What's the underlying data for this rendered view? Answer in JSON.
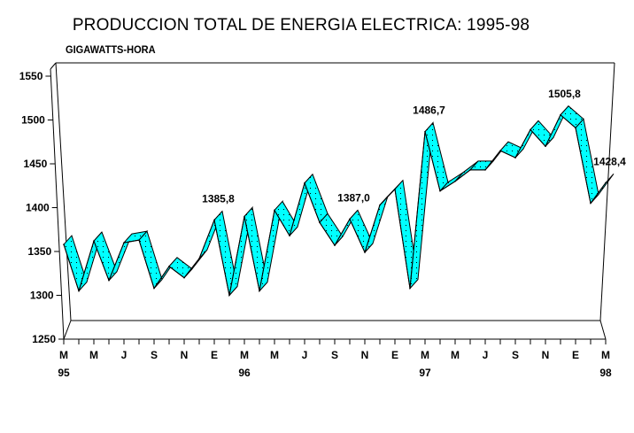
{
  "chart_data": {
    "type": "line",
    "style": "3d-ribbon",
    "title": "PRODUCCION TOTAL DE ENERGIA ELECTRICA: 1995-98",
    "ylabel": "GIGAWATTS-HORA",
    "xlabel": "",
    "ylim": [
      1250,
      1550
    ],
    "yticks": [
      1250,
      1300,
      1350,
      1400,
      1450,
      1500,
      1550
    ],
    "grid": false,
    "legend": "none",
    "x": [
      "Mar-95",
      "Apr-95",
      "May-95",
      "Jun-95",
      "Jul-95",
      "Aug-95",
      "Sep-95",
      "Oct-95",
      "Nov-95",
      "Dec-95",
      "Jan-96",
      "Feb-96",
      "Mar-96",
      "Apr-96",
      "May-96",
      "Jun-96",
      "Jul-96",
      "Aug-96",
      "Sep-96",
      "Oct-96",
      "Nov-96",
      "Dec-96",
      "Jan-97",
      "Feb-97",
      "Mar-97",
      "Apr-97",
      "May-97",
      "Jun-97",
      "Jul-97",
      "Aug-97",
      "Sep-97",
      "Oct-97",
      "Nov-97",
      "Dec-97",
      "Jan-98",
      "Feb-98",
      "Mar-98"
    ],
    "xtick_labels": [
      {
        "index": 0,
        "label": "M",
        "year": "95"
      },
      {
        "index": 2,
        "label": "M",
        "year": ""
      },
      {
        "index": 4,
        "label": "J",
        "year": ""
      },
      {
        "index": 6,
        "label": "S",
        "year": ""
      },
      {
        "index": 8,
        "label": "N",
        "year": ""
      },
      {
        "index": 10,
        "label": "E",
        "year": ""
      },
      {
        "index": 12,
        "label": "M",
        "year": "96"
      },
      {
        "index": 14,
        "label": "M",
        "year": ""
      },
      {
        "index": 16,
        "label": "J",
        "year": ""
      },
      {
        "index": 18,
        "label": "S",
        "year": ""
      },
      {
        "index": 20,
        "label": "N",
        "year": ""
      },
      {
        "index": 22,
        "label": "E",
        "year": ""
      },
      {
        "index": 24,
        "label": "M",
        "year": "97"
      },
      {
        "index": 26,
        "label": "M",
        "year": ""
      },
      {
        "index": 28,
        "label": "J",
        "year": ""
      },
      {
        "index": 30,
        "label": "S",
        "year": ""
      },
      {
        "index": 32,
        "label": "N",
        "year": ""
      },
      {
        "index": 34,
        "label": "E",
        "year": ""
      },
      {
        "index": 36,
        "label": "M",
        "year": "98"
      }
    ],
    "series": [
      {
        "name": "Produccion total",
        "color": "#00ffff",
        "values": [
          1358,
          1305,
          1362,
          1317,
          1360,
          1363,
          1308,
          1333,
          1320,
          1342,
          1385.8,
          1300,
          1390,
          1305,
          1397,
          1368,
          1428,
          1383,
          1357,
          1387.0,
          1349,
          1403,
          1421,
          1308,
          1486.7,
          1419,
          1430,
          1443,
          1443,
          1465,
          1457,
          1489,
          1470,
          1505.8,
          1491,
          1405,
          1428.4
        ]
      }
    ],
    "annotations": [
      {
        "index": 10,
        "text": "1385,8"
      },
      {
        "index": 19,
        "text": "1387,0"
      },
      {
        "index": 24,
        "text": "1486,7"
      },
      {
        "index": 33,
        "text": "1505,8"
      },
      {
        "index": 36,
        "text": "1428,4"
      }
    ]
  }
}
